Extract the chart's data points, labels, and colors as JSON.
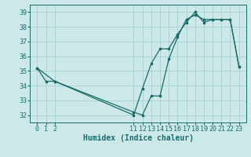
{
  "xlabel": "Humidex (Indice chaleur)",
  "bg_color": "#cce8e8",
  "line_color": "#1a6b6b",
  "grid_color": "#aad4d4",
  "series1_x": [
    0,
    1,
    2,
    11,
    12,
    13,
    14,
    15,
    16,
    17,
    18,
    19,
    20,
    21,
    22,
    23
  ],
  "series1_y": [
    35.2,
    34.3,
    34.3,
    32.2,
    32.0,
    33.3,
    33.3,
    35.8,
    37.3,
    38.5,
    38.8,
    38.5,
    38.5,
    38.5,
    38.5,
    35.3
  ],
  "series2_x": [
    0,
    2,
    11,
    12,
    13,
    14,
    15,
    16,
    17,
    18,
    19,
    20,
    21,
    22,
    23
  ],
  "series2_y": [
    35.2,
    34.3,
    32.0,
    33.8,
    35.5,
    36.5,
    36.5,
    37.5,
    38.3,
    39.0,
    38.3,
    38.5,
    38.5,
    38.5,
    35.3
  ],
  "ylim": [
    31.5,
    39.5
  ],
  "yticks": [
    32,
    33,
    34,
    35,
    36,
    37,
    38,
    39
  ],
  "xticks": [
    0,
    1,
    2,
    11,
    12,
    13,
    14,
    15,
    16,
    17,
    18,
    19,
    20,
    21,
    22,
    23
  ],
  "xlim": [
    -0.8,
    23.8
  ],
  "xlabel_fontsize": 7,
  "tick_fontsize": 6
}
